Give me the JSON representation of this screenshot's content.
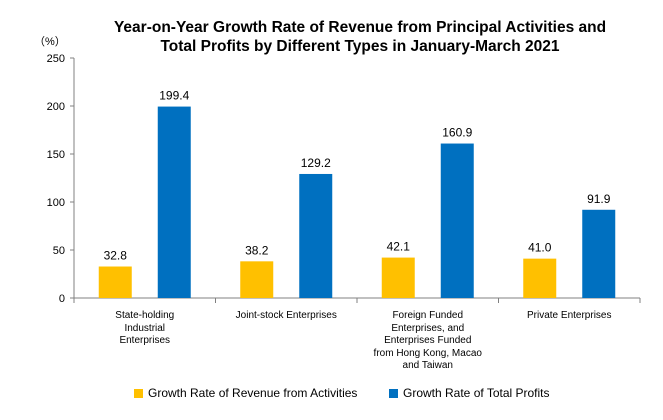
{
  "chart_data": {
    "type": "bar",
    "title_line1": "Year-on-Year Growth Rate of Revenue from Principal Activities  and",
    "title_line2": "Total Profits  by Different Types in January-March 2021",
    "unit_label": "（%）",
    "ylim": [
      0,
      250
    ],
    "yticks": [
      0,
      50,
      100,
      150,
      200,
      250
    ],
    "grid": false,
    "legend_position": "bottom",
    "categories": [
      [
        "State-holding",
        "Industrial",
        "Enterprises"
      ],
      [
        "Joint-stock Enterprises"
      ],
      [
        "Foreign Funded",
        "Enterprises, and",
        "Enterprises Funded",
        "from Hong Kong, Macao",
        "and Taiwan"
      ],
      [
        "Private Enterprises"
      ]
    ],
    "series": [
      {
        "name": "Growth Rate of Revenue from Activities",
        "color": "#FFC000",
        "values": [
          32.8,
          38.2,
          42.1,
          41.0
        ],
        "labels": [
          "32.8",
          "38.2",
          "42.1",
          "41.0"
        ]
      },
      {
        "name": "Growth Rate of Total Profits",
        "color": "#0070C0",
        "values": [
          199.4,
          129.2,
          160.9,
          91.9
        ],
        "labels": [
          "199.4",
          "129.2",
          "160.9",
          "91.9"
        ]
      }
    ]
  }
}
